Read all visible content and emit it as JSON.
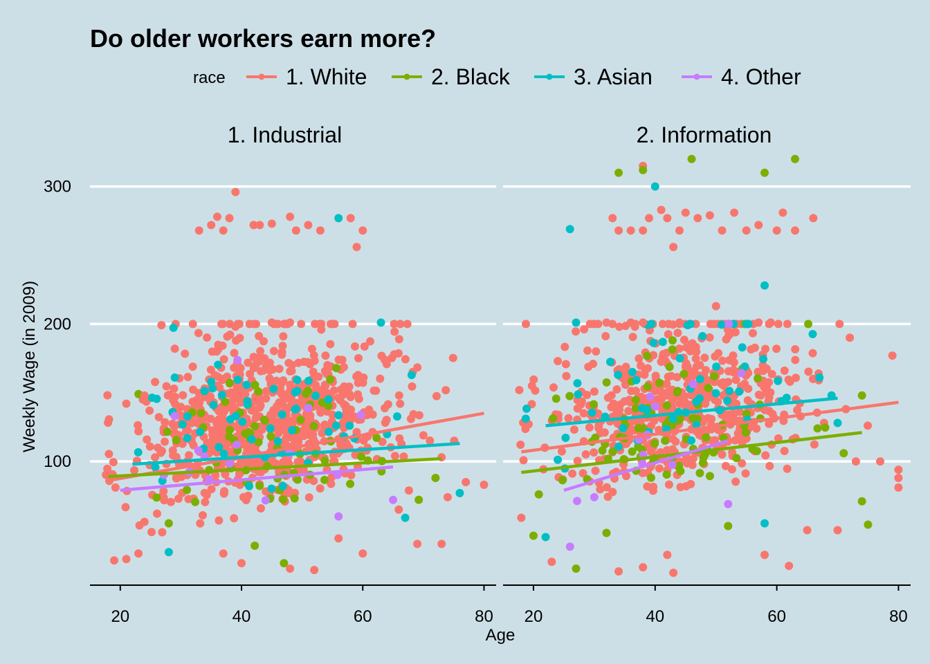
{
  "chart_data": {
    "type": "scatter",
    "title": "Do older workers earn more?",
    "xlabel": "Age",
    "ylabel": "Weekly Wage (in 2009)",
    "xlim": [
      15,
      82
    ],
    "ylim": [
      10,
      325
    ],
    "x_ticks": [
      20,
      40,
      60,
      80
    ],
    "y_ticks": [
      100,
      200,
      300
    ],
    "grid": "horizontal major lines",
    "legend": {
      "title": "race",
      "position": "top",
      "entries": [
        {
          "label": "1. White",
          "color": "#f8766d"
        },
        {
          "label": "2. Black",
          "color": "#7cae00"
        },
        {
          "label": "3. Asian",
          "color": "#00bfc4"
        },
        {
          "label": "4. Other",
          "color": "#c77cff"
        }
      ]
    },
    "panels": [
      {
        "label": "1. Industrial",
        "trend_lines": [
          {
            "series": "1. White",
            "x": [
              18,
              80
            ],
            "y": [
              86,
              135
            ]
          },
          {
            "series": "2. Black",
            "x": [
              18,
              73
            ],
            "y": [
              89,
              102
            ]
          },
          {
            "series": "3. Asian",
            "x": [
              22,
              76
            ],
            "y": [
              98,
              113
            ]
          },
          {
            "series": "4. Other",
            "x": [
              20,
              65
            ],
            "y": [
              79,
              96
            ]
          }
        ],
        "points": [
          {
            "series": "1. White",
            "x": 33,
            "y": 268
          },
          {
            "series": "1. White",
            "x": 35,
            "y": 272
          },
          {
            "series": "1. White",
            "x": 36,
            "y": 278
          },
          {
            "series": "1. White",
            "x": 37,
            "y": 268
          },
          {
            "series": "1. White",
            "x": 38,
            "y": 277
          },
          {
            "series": "1. White",
            "x": 39,
            "y": 296
          },
          {
            "series": "1. White",
            "x": 42,
            "y": 272
          },
          {
            "series": "1. White",
            "x": 43,
            "y": 272
          },
          {
            "series": "1. White",
            "x": 45,
            "y": 273
          },
          {
            "series": "1. White",
            "x": 48,
            "y": 278
          },
          {
            "series": "1. White",
            "x": 49,
            "y": 268
          },
          {
            "series": "1. White",
            "x": 51,
            "y": 272
          },
          {
            "series": "1. White",
            "x": 53,
            "y": 268
          },
          {
            "series": "1. White",
            "x": 58,
            "y": 277
          },
          {
            "series": "1. White",
            "x": 59,
            "y": 256
          },
          {
            "series": "1. White",
            "x": 60,
            "y": 268
          },
          {
            "series": "1. White",
            "x": 39,
            "y": 198
          },
          {
            "series": "1. White",
            "x": 45,
            "y": 201
          },
          {
            "series": "1. White",
            "x": 48,
            "y": 201
          },
          {
            "series": "1. White",
            "x": 29,
            "y": 182
          },
          {
            "series": "1. White",
            "x": 21,
            "y": 142
          },
          {
            "series": "1. White",
            "x": 24,
            "y": 148
          },
          {
            "series": "1. White",
            "x": 66,
            "y": 148
          },
          {
            "series": "1. White",
            "x": 70,
            "y": 119
          },
          {
            "series": "1. White",
            "x": 73,
            "y": 103
          },
          {
            "series": "1. White",
            "x": 77,
            "y": 85
          },
          {
            "series": "1. White",
            "x": 80,
            "y": 83
          },
          {
            "series": "1. White",
            "x": 74,
            "y": 74
          },
          {
            "series": "1. White",
            "x": 69,
            "y": 40
          },
          {
            "series": "1. White",
            "x": 73,
            "y": 40
          },
          {
            "series": "1. White",
            "x": 19,
            "y": 28
          },
          {
            "series": "1. White",
            "x": 21,
            "y": 29
          },
          {
            "series": "1. White",
            "x": 23,
            "y": 33
          },
          {
            "series": "1. White",
            "x": 37,
            "y": 33
          },
          {
            "series": "1. White",
            "x": 40,
            "y": 26
          },
          {
            "series": "1. White",
            "x": 48,
            "y": 22
          },
          {
            "series": "1. White",
            "x": 52,
            "y": 21
          },
          {
            "series": "1. White",
            "x": 56,
            "y": 44
          },
          {
            "series": "1. White",
            "x": 60,
            "y": 33
          },
          {
            "series": "2. Black",
            "x": 47,
            "y": 26
          },
          {
            "series": "2. Black",
            "x": 28,
            "y": 55
          },
          {
            "series": "2. Black",
            "x": 72,
            "y": 88
          },
          {
            "series": "3. Asian",
            "x": 56,
            "y": 277
          },
          {
            "series": "3. Asian",
            "x": 63,
            "y": 201
          },
          {
            "series": "3. Asian",
            "x": 29,
            "y": 161
          },
          {
            "series": "3. Asian",
            "x": 35,
            "y": 158
          },
          {
            "series": "3. Asian",
            "x": 28,
            "y": 34
          },
          {
            "series": "3. Asian",
            "x": 67,
            "y": 59
          },
          {
            "series": "3. Asian",
            "x": 76,
            "y": 77
          },
          {
            "series": "4. Other",
            "x": 29,
            "y": 133
          },
          {
            "series": "4. Other",
            "x": 51,
            "y": 139
          },
          {
            "series": "4. Other",
            "x": 56,
            "y": 60
          },
          {
            "series": "4. Other",
            "x": 65,
            "y": 72
          }
        ]
      },
      {
        "label": "2. Information",
        "trend_lines": [
          {
            "series": "1. White",
            "x": 18,
            "y": [
              107,
              143
            ],
            "x_end": 80
          },
          {
            "series": "2. Black",
            "x": 18,
            "y": [
              92,
              121
            ],
            "x_end": 74
          },
          {
            "series": "3. Asian",
            "x": 22,
            "y": [
              126,
              146
            ],
            "x_end": 70
          },
          {
            "series": "4. Other",
            "x": 25,
            "y": [
              79,
              115
            ],
            "x_end": 52
          }
        ],
        "points": [
          {
            "series": "1. White",
            "x": 38,
            "y": 315
          },
          {
            "series": "1. White",
            "x": 33,
            "y": 277
          },
          {
            "series": "1. White",
            "x": 34,
            "y": 268
          },
          {
            "series": "1. White",
            "x": 36,
            "y": 268
          },
          {
            "series": "1. White",
            "x": 38,
            "y": 268
          },
          {
            "series": "1. White",
            "x": 39,
            "y": 277
          },
          {
            "series": "1. White",
            "x": 41,
            "y": 283
          },
          {
            "series": "1. White",
            "x": 42,
            "y": 277
          },
          {
            "series": "1. White",
            "x": 43,
            "y": 256
          },
          {
            "series": "1. White",
            "x": 44,
            "y": 268
          },
          {
            "series": "1. White",
            "x": 45,
            "y": 281
          },
          {
            "series": "1. White",
            "x": 47,
            "y": 277
          },
          {
            "series": "1. White",
            "x": 49,
            "y": 279
          },
          {
            "series": "1. White",
            "x": 51,
            "y": 268
          },
          {
            "series": "1. White",
            "x": 53,
            "y": 281
          },
          {
            "series": "1. White",
            "x": 55,
            "y": 268
          },
          {
            "series": "1. White",
            "x": 57,
            "y": 272
          },
          {
            "series": "1. White",
            "x": 60,
            "y": 268
          },
          {
            "series": "1. White",
            "x": 61,
            "y": 281
          },
          {
            "series": "1. White",
            "x": 63,
            "y": 268
          },
          {
            "series": "1. White",
            "x": 66,
            "y": 277
          },
          {
            "series": "1. White",
            "x": 50,
            "y": 213
          },
          {
            "series": "1. White",
            "x": 32,
            "y": 201
          },
          {
            "series": "1. White",
            "x": 36,
            "y": 201
          },
          {
            "series": "1. White",
            "x": 38,
            "y": 201
          },
          {
            "series": "1. White",
            "x": 44,
            "y": 201
          },
          {
            "series": "1. White",
            "x": 57,
            "y": 201
          },
          {
            "series": "1. White",
            "x": 59,
            "y": 201
          },
          {
            "series": "1. White",
            "x": 24,
            "y": 173
          },
          {
            "series": "1. White",
            "x": 72,
            "y": 190
          },
          {
            "series": "1. White",
            "x": 79,
            "y": 177
          },
          {
            "series": "1. White",
            "x": 73,
            "y": 100
          },
          {
            "series": "1. White",
            "x": 77,
            "y": 100
          },
          {
            "series": "1. White",
            "x": 80,
            "y": 94
          },
          {
            "series": "1. White",
            "x": 80,
            "y": 88
          },
          {
            "series": "1. White",
            "x": 80,
            "y": 81
          },
          {
            "series": "1. White",
            "x": 70,
            "y": 50
          },
          {
            "series": "1. White",
            "x": 65,
            "y": 50
          },
          {
            "series": "1. White",
            "x": 18,
            "y": 59
          },
          {
            "series": "1. White",
            "x": 23,
            "y": 27
          },
          {
            "series": "1. White",
            "x": 34,
            "y": 20
          },
          {
            "series": "1. White",
            "x": 38,
            "y": 23
          },
          {
            "series": "1. White",
            "x": 42,
            "y": 32
          },
          {
            "series": "1. White",
            "x": 43,
            "y": 19
          },
          {
            "series": "1. White",
            "x": 58,
            "y": 32
          },
          {
            "series": "1. White",
            "x": 62,
            "y": 24
          },
          {
            "series": "2. Black",
            "x": 46,
            "y": 320
          },
          {
            "series": "2. Black",
            "x": 63,
            "y": 320
          },
          {
            "series": "2. Black",
            "x": 34,
            "y": 310
          },
          {
            "series": "2. Black",
            "x": 38,
            "y": 312
          },
          {
            "series": "2. Black",
            "x": 58,
            "y": 310
          },
          {
            "series": "2. Black",
            "x": 74,
            "y": 148
          },
          {
            "series": "2. Black",
            "x": 71,
            "y": 106
          },
          {
            "series": "2. Black",
            "x": 74,
            "y": 71
          },
          {
            "series": "2. Black",
            "x": 75,
            "y": 54
          },
          {
            "series": "2. Black",
            "x": 27,
            "y": 22
          },
          {
            "series": "2. Black",
            "x": 20,
            "y": 46
          },
          {
            "series": "2. Black",
            "x": 32,
            "y": 48
          },
          {
            "series": "2. Black",
            "x": 52,
            "y": 53
          },
          {
            "series": "3. Asian",
            "x": 40,
            "y": 300
          },
          {
            "series": "3. Asian",
            "x": 26,
            "y": 269
          },
          {
            "series": "3. Asian",
            "x": 58,
            "y": 228
          },
          {
            "series": "3. Asian",
            "x": 27,
            "y": 201
          },
          {
            "series": "3. Asian",
            "x": 67,
            "y": 161
          },
          {
            "series": "3. Asian",
            "x": 69,
            "y": 148
          },
          {
            "series": "3. Asian",
            "x": 70,
            "y": 128
          },
          {
            "series": "3. Asian",
            "x": 22,
            "y": 45
          },
          {
            "series": "3. Asian",
            "x": 58,
            "y": 55
          },
          {
            "series": "4. Other",
            "x": 26,
            "y": 38
          },
          {
            "series": "4. Other",
            "x": 30,
            "y": 74
          },
          {
            "series": "4. Other",
            "x": 40,
            "y": 140
          },
          {
            "series": "4. Other",
            "x": 52,
            "y": 69
          }
        ]
      }
    ]
  }
}
